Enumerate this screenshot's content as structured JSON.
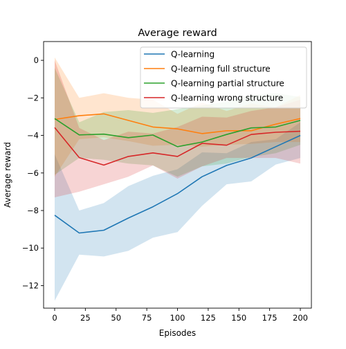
{
  "chart_data": {
    "type": "line",
    "title": "Average reward",
    "xlabel": "Episodes",
    "ylabel": "Average reward",
    "xlim": [
      -9,
      209
    ],
    "ylim": [
      -13.2,
      1.0
    ],
    "xticks": [
      0,
      25,
      50,
      75,
      100,
      125,
      150,
      175,
      200
    ],
    "yticks": [
      0,
      -2,
      -4,
      -6,
      -8,
      -10,
      -12
    ],
    "grid": false,
    "legend_position": "top-right",
    "x": [
      0,
      20,
      40,
      60,
      80,
      100,
      120,
      140,
      160,
      180,
      200
    ],
    "series": [
      {
        "name": "Q-learning",
        "color": "#1f77b4",
        "values": [
          -8.25,
          -9.2,
          -9.05,
          -8.4,
          -7.8,
          -7.1,
          -6.2,
          -5.6,
          -5.2,
          -4.6,
          -4.0
        ],
        "lower": [
          -12.8,
          -10.35,
          -10.45,
          -10.15,
          -9.45,
          -9.15,
          -7.75,
          -6.6,
          -6.45,
          -5.55,
          -5.2
        ],
        "upper": [
          -5.0,
          -8.0,
          -7.6,
          -6.7,
          -6.15,
          -5.8,
          -4.9,
          -4.95,
          -4.35,
          -4.2,
          -3.3
        ]
      },
      {
        "name": "Q-learning full structure",
        "color": "#ff7f0e",
        "values": [
          -3.15,
          -2.95,
          -2.85,
          -3.2,
          -3.55,
          -3.65,
          -3.9,
          -3.75,
          -3.75,
          -3.4,
          -3.1
        ],
        "lower": [
          -6.2,
          -4.2,
          -4.1,
          -4.3,
          -4.55,
          -4.5,
          -4.6,
          -4.5,
          -4.45,
          -4.35,
          -4.35
        ],
        "upper": [
          0.15,
          -2.0,
          -1.75,
          -2.0,
          -2.1,
          -2.85,
          -2.25,
          -2.7,
          -2.3,
          -2.5,
          -1.85
        ]
      },
      {
        "name": "Q-learning partial structure",
        "color": "#2ca02c",
        "values": [
          -3.1,
          -3.97,
          -3.93,
          -4.12,
          -3.98,
          -4.6,
          -4.35,
          -3.95,
          -3.6,
          -3.55,
          -3.2
        ],
        "lower": [
          -6.1,
          -5.2,
          -5.3,
          -5.5,
          -5.6,
          -6.2,
          -5.65,
          -5.5,
          -5.15,
          -4.95,
          -4.5
        ],
        "upper": [
          -0.4,
          -3.3,
          -2.75,
          -2.65,
          -2.8,
          -2.6,
          -2.4,
          -2.2,
          -1.85,
          -1.75,
          -1.95
        ]
      },
      {
        "name": "Q-learning wrong structure",
        "color": "#d62728",
        "values": [
          -3.58,
          -5.18,
          -5.58,
          -5.12,
          -4.93,
          -5.12,
          -4.42,
          -4.52,
          -3.95,
          -3.83,
          -3.78
        ],
        "lower": [
          -7.3,
          -7.0,
          -6.6,
          -6.2,
          -5.6,
          -6.3,
          -5.65,
          -5.2,
          -5.2,
          -5.2,
          -5.5
        ],
        "upper": [
          0.0,
          -3.6,
          -4.25,
          -3.8,
          -3.9,
          -3.55,
          -3.0,
          -3.05,
          -2.7,
          -2.5,
          -2.1
        ]
      }
    ]
  }
}
